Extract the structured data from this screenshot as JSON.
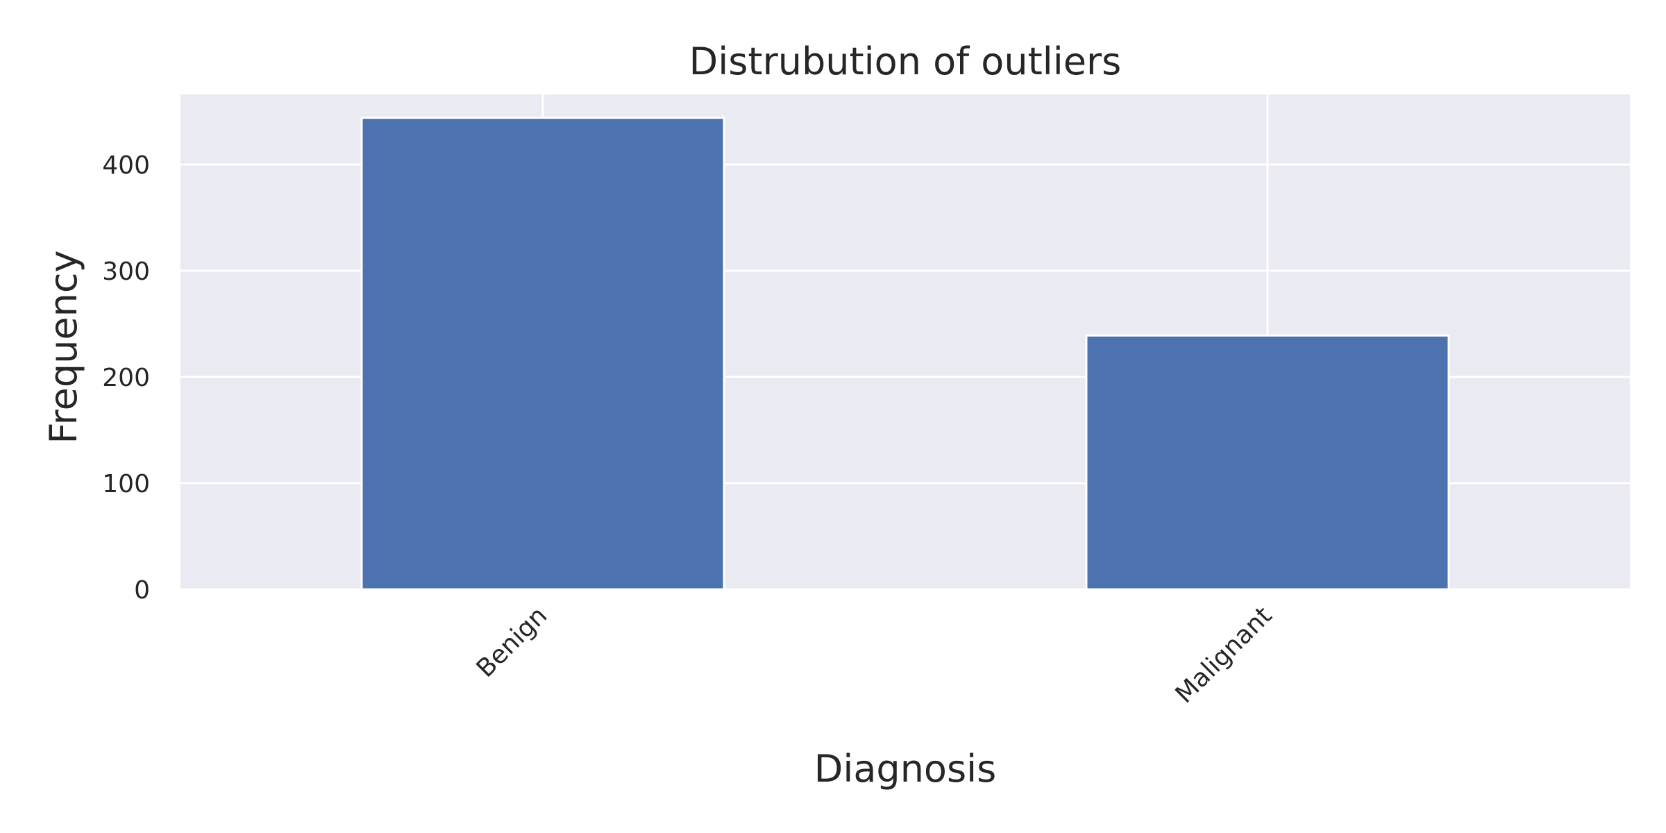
{
  "chart_data": {
    "type": "bar",
    "title": "Distrubution of outliers",
    "xlabel": "Diagnosis",
    "ylabel": "Frequency",
    "categories": [
      "Benign",
      "Malignant"
    ],
    "values": [
      444,
      239
    ],
    "ylim": [
      0,
      466
    ],
    "yticks": [
      0,
      100,
      200,
      300,
      400
    ],
    "grid": true,
    "xtick_rotation_deg": 45,
    "colors": {
      "bar": "#4c72b0",
      "plot_background": "#eaeaf2",
      "grid": "#ffffff",
      "text": "#262626"
    }
  }
}
